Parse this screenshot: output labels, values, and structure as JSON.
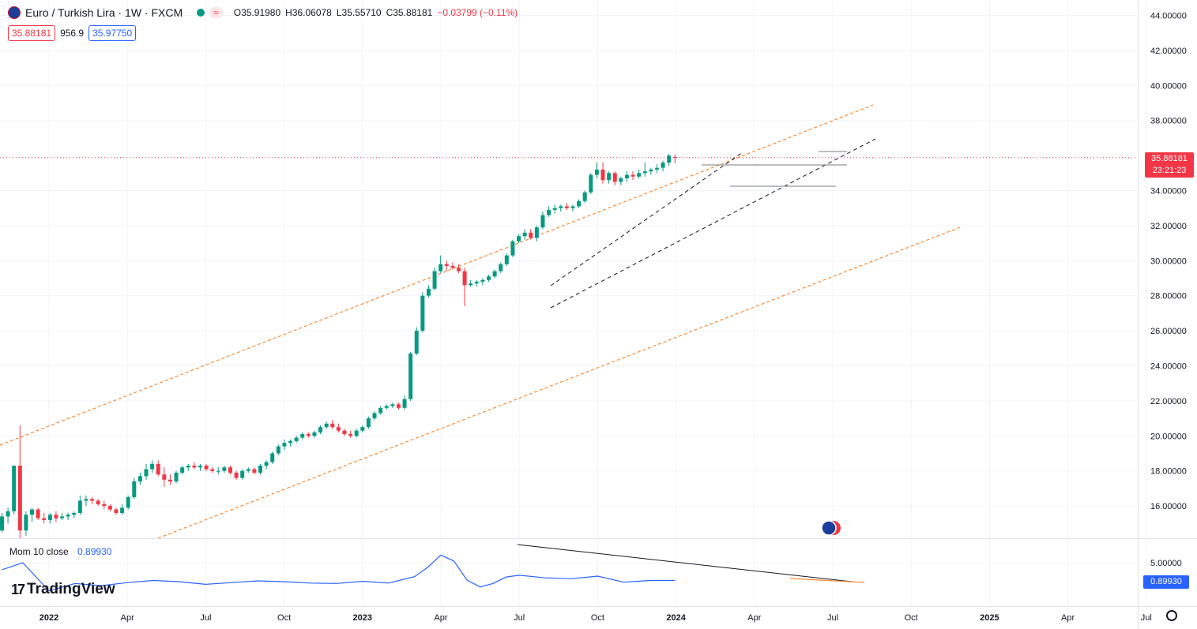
{
  "header": {
    "symbol_title": "Euro / Turkish Lira · 1W · FXCM",
    "wave_icon": "≈",
    "ohlc": {
      "open": "O35.91980",
      "high": "H36.06078",
      "low": "L35.55710",
      "close": "C35.88181",
      "change": "−0.03799 (−0.11%)"
    },
    "bid": "35.88181",
    "spread": "956.9",
    "ask": "35.97750"
  },
  "current_price_label": "35.88181",
  "countdown_label": "23:21:23",
  "momentum": {
    "label": "Mom 10 close",
    "value": "0.89930"
  },
  "branding": {
    "logo_mark": "17",
    "logo_text": "TradingView"
  },
  "colors": {
    "up": "#089981",
    "down": "#f23645",
    "channel": "#f7882f",
    "momentum": "#2962ff",
    "price_line": "#f23645"
  },
  "chart_data": [
    {
      "type": "candlestick",
      "title": "Euro / Turkish Lira · 1W · FXCM",
      "xlabel": "",
      "ylabel": "",
      "ylim": [
        14.5,
        44.5
      ],
      "y_ticks": [
        "44.00000",
        "42.00000",
        "40.00000",
        "38.00000",
        "34.00000",
        "32.00000",
        "30.00000",
        "28.00000",
        "26.00000",
        "24.00000",
        "22.00000",
        "20.00000",
        "18.00000",
        "16.00000"
      ],
      "x_ticks": [
        "2022",
        "Apr",
        "Jul",
        "Oct",
        "2023",
        "Apr",
        "Jul",
        "Oct",
        "2024",
        "Apr",
        "Jul",
        "Oct",
        "2025",
        "Apr",
        "Jul"
      ],
      "x_tick_months": [
        0,
        3,
        6,
        9,
        12,
        15,
        18,
        21,
        24,
        27,
        30,
        33,
        36,
        39,
        42
      ],
      "grid": true,
      "series": [
        {
          "name": "Euro / Turkish Lira",
          "candles": [
            [
              -1.8,
              14.6,
              15.6,
              14.5,
              15.4
            ],
            [
              -1.57,
              15.4,
              15.9,
              15.0,
              15.7
            ],
            [
              -1.34,
              15.7,
              18.3,
              15.5,
              18.3
            ],
            [
              -1.11,
              18.3,
              20.6,
              13.5,
              14.6
            ],
            [
              -0.88,
              14.6,
              15.7,
              14.3,
              15.5
            ],
            [
              -0.65,
              15.5,
              15.9,
              15.1,
              15.8
            ],
            [
              -0.42,
              15.8,
              15.9,
              15.2,
              15.3
            ],
            [
              -0.19,
              15.3,
              15.6,
              15.0,
              15.2
            ],
            [
              0.04,
              15.2,
              15.6,
              15.0,
              15.5
            ],
            [
              0.27,
              15.5,
              15.7,
              15.1,
              15.3
            ],
            [
              0.5,
              15.3,
              15.6,
              15.2,
              15.4
            ],
            [
              0.73,
              15.4,
              15.6,
              15.2,
              15.5
            ],
            [
              0.96,
              15.5,
              15.7,
              15.3,
              15.6
            ],
            [
              1.19,
              15.6,
              16.6,
              15.5,
              16.3
            ],
            [
              1.42,
              16.3,
              16.6,
              16.0,
              16.4
            ],
            [
              1.65,
              16.4,
              16.5,
              16.1,
              16.3
            ],
            [
              1.88,
              16.3,
              16.4,
              16.0,
              16.1
            ],
            [
              2.11,
              16.1,
              16.3,
              15.8,
              16.0
            ],
            [
              2.34,
              16.0,
              16.1,
              15.7,
              15.8
            ],
            [
              2.57,
              15.8,
              15.9,
              15.5,
              15.6
            ],
            [
              2.8,
              15.6,
              16.1,
              15.5,
              15.9
            ],
            [
              3.03,
              15.9,
              16.6,
              15.8,
              16.5
            ],
            [
              3.26,
              16.5,
              17.6,
              16.4,
              17.4
            ],
            [
              3.49,
              17.4,
              17.9,
              17.2,
              17.7
            ],
            [
              3.72,
              17.7,
              18.4,
              17.5,
              18.1
            ],
            [
              3.95,
              18.1,
              18.6,
              17.9,
              18.4
            ],
            [
              4.18,
              18.4,
              18.6,
              17.7,
              17.8
            ],
            [
              4.41,
              17.8,
              18.2,
              17.1,
              17.5
            ],
            [
              4.64,
              17.5,
              17.8,
              17.2,
              17.4
            ],
            [
              4.87,
              17.4,
              18.0,
              17.3,
              17.9
            ],
            [
              5.1,
              17.9,
              18.3,
              17.8,
              18.2
            ],
            [
              5.33,
              18.2,
              18.4,
              18.0,
              18.3
            ],
            [
              5.56,
              18.3,
              18.5,
              18.1,
              18.2
            ],
            [
              5.79,
              18.2,
              18.4,
              18.0,
              18.3
            ],
            [
              6.02,
              18.3,
              18.4,
              18.0,
              18.1
            ],
            [
              6.25,
              18.1,
              18.2,
              17.9,
              18.0
            ],
            [
              6.48,
              18.0,
              18.2,
              17.8,
              18.0
            ],
            [
              6.71,
              18.0,
              18.3,
              17.9,
              18.2
            ],
            [
              6.94,
              18.2,
              18.3,
              17.8,
              17.9
            ],
            [
              7.17,
              17.9,
              18.0,
              17.5,
              17.6
            ],
            [
              7.4,
              17.6,
              18.1,
              17.5,
              18.0
            ],
            [
              7.63,
              18.0,
              18.2,
              17.9,
              18.1
            ],
            [
              7.86,
              18.1,
              18.2,
              17.8,
              17.9
            ],
            [
              8.09,
              17.9,
              18.4,
              17.8,
              18.3
            ],
            [
              8.32,
              18.3,
              18.6,
              18.1,
              18.5
            ],
            [
              8.55,
              18.5,
              19.1,
              18.4,
              19.0
            ],
            [
              8.78,
              19.0,
              19.5,
              18.9,
              19.4
            ],
            [
              9.01,
              19.4,
              19.8,
              19.2,
              19.6
            ],
            [
              9.24,
              19.6,
              19.8,
              19.4,
              19.7
            ],
            [
              9.47,
              19.7,
              20.0,
              19.6,
              19.9
            ],
            [
              9.7,
              19.9,
              20.2,
              19.8,
              20.1
            ],
            [
              9.93,
              20.1,
              20.2,
              19.9,
              20.0
            ],
            [
              10.16,
              20.0,
              20.3,
              19.9,
              20.2
            ],
            [
              10.39,
              20.2,
              20.6,
              20.1,
              20.5
            ],
            [
              10.62,
              20.5,
              20.8,
              20.4,
              20.7
            ],
            [
              10.85,
              20.7,
              20.9,
              20.4,
              20.5
            ],
            [
              11.08,
              20.5,
              20.7,
              20.2,
              20.3
            ],
            [
              11.31,
              20.3,
              20.4,
              20.0,
              20.1
            ],
            [
              11.54,
              20.1,
              20.3,
              19.9,
              20.0
            ],
            [
              11.77,
              20.0,
              20.4,
              19.9,
              20.3
            ],
            [
              12.0,
              20.3,
              20.6,
              20.2,
              20.5
            ],
            [
              12.23,
              20.5,
              21.1,
              20.4,
              21.0
            ],
            [
              12.46,
              21.0,
              21.4,
              20.9,
              21.3
            ],
            [
              12.69,
              21.3,
              21.7,
              21.2,
              21.6
            ],
            [
              12.92,
              21.6,
              21.8,
              21.5,
              21.7
            ],
            [
              13.15,
              21.7,
              21.9,
              21.6,
              21.8
            ],
            [
              13.38,
              21.8,
              21.9,
              21.5,
              21.6
            ],
            [
              13.61,
              21.6,
              22.3,
              21.5,
              22.1
            ],
            [
              13.84,
              22.1,
              24.8,
              22.0,
              24.7
            ],
            [
              14.07,
              24.7,
              26.2,
              24.6,
              26.0
            ],
            [
              14.3,
              26.0,
              28.2,
              25.9,
              28.0
            ],
            [
              14.53,
              28.0,
              28.6,
              27.9,
              28.4
            ],
            [
              14.76,
              28.4,
              29.6,
              28.3,
              29.4
            ],
            [
              14.99,
              29.4,
              30.3,
              29.3,
              29.8
            ],
            [
              15.22,
              29.8,
              30.0,
              29.4,
              29.7
            ],
            [
              15.45,
              29.7,
              29.9,
              29.5,
              29.6
            ],
            [
              15.68,
              29.6,
              29.8,
              29.3,
              29.4
            ],
            [
              15.91,
              29.4,
              29.6,
              27.4,
              28.6
            ],
            [
              16.14,
              28.6,
              28.9,
              28.5,
              28.7
            ],
            [
              16.37,
              28.7,
              28.9,
              28.5,
              28.8
            ],
            [
              16.6,
              28.8,
              29.0,
              28.6,
              28.9
            ],
            [
              16.83,
              28.9,
              29.2,
              28.8,
              29.1
            ],
            [
              17.06,
              29.1,
              29.5,
              29.0,
              29.4
            ],
            [
              17.29,
              29.4,
              29.9,
              29.3,
              29.8
            ],
            [
              17.52,
              29.8,
              30.4,
              29.7,
              30.3
            ],
            [
              17.75,
              30.3,
              31.2,
              30.2,
              31.1
            ],
            [
              17.98,
              31.1,
              31.5,
              31.0,
              31.4
            ],
            [
              18.21,
              31.4,
              31.8,
              31.2,
              31.6
            ],
            [
              18.44,
              31.6,
              31.8,
              31.2,
              31.3
            ],
            [
              18.67,
              31.3,
              32.0,
              31.1,
              31.9
            ],
            [
              18.9,
              31.9,
              32.8,
              31.8,
              32.6
            ],
            [
              19.13,
              32.6,
              33.1,
              32.5,
              32.9
            ],
            [
              19.36,
              32.9,
              33.2,
              32.7,
              33.0
            ],
            [
              19.59,
              33.0,
              33.2,
              32.8,
              33.1
            ],
            [
              19.82,
              33.1,
              33.3,
              32.9,
              33.0
            ],
            [
              20.05,
              33.0,
              33.2,
              32.8,
              33.1
            ],
            [
              20.28,
              33.1,
              33.5,
              33.0,
              33.4
            ],
            [
              20.51,
              33.4,
              34.0,
              33.3,
              33.9
            ],
            [
              20.74,
              33.9,
              35.0,
              33.8,
              34.9
            ],
            [
              20.97,
              34.9,
              35.6,
              34.7,
              35.2
            ],
            [
              21.2,
              35.2,
              35.6,
              34.4,
              34.6
            ],
            [
              21.43,
              34.6,
              35.1,
              34.4,
              35.0
            ],
            [
              21.66,
              35.0,
              35.1,
              34.3,
              34.5
            ],
            [
              21.89,
              34.5,
              34.8,
              34.3,
              34.7
            ],
            [
              22.12,
              34.7,
              35.1,
              34.5,
              34.9
            ],
            [
              22.35,
              34.9,
              35.1,
              34.6,
              34.8
            ],
            [
              22.58,
              34.8,
              35.2,
              34.7,
              35.0
            ],
            [
              22.81,
              35.0,
              35.6,
              34.8,
              35.1
            ],
            [
              23.04,
              35.1,
              35.3,
              34.9,
              35.2
            ],
            [
              23.27,
              35.2,
              35.5,
              35.0,
              35.3
            ],
            [
              23.5,
              35.3,
              35.7,
              35.1,
              35.6
            ],
            [
              23.73,
              35.6,
              36.1,
              35.4,
              36.0
            ],
            [
              23.96,
              35.92,
              36.06,
              35.56,
              35.88
            ]
          ]
        }
      ]
    },
    {
      "type": "line",
      "title": "Mom 10 close",
      "ylim": [
        -2.0,
        8.5
      ],
      "y_ticks": [
        "5.00000"
      ],
      "series": [
        {
          "name": "Mom 10 close",
          "x": [
            -1.8,
            -1,
            0,
            1,
            2,
            3,
            4,
            5,
            6,
            7,
            8,
            9,
            10,
            11,
            12,
            13,
            14,
            14.5,
            15,
            15.5,
            16,
            16.5,
            17,
            17.5,
            18,
            19,
            20,
            21,
            22,
            23,
            23.96
          ],
          "y": [
            3.4,
            5.0,
            -1.5,
            0.2,
            -0.3,
            0.4,
            0.9,
            0.6,
            0.0,
            0.4,
            0.8,
            0.6,
            0.3,
            0.2,
            0.7,
            0.3,
            1.8,
            4.0,
            6.8,
            5.4,
            1.0,
            -0.6,
            0.2,
            1.7,
            2.1,
            1.5,
            1.3,
            1.9,
            0.5,
            0.9,
            0.9
          ]
        }
      ]
    }
  ]
}
